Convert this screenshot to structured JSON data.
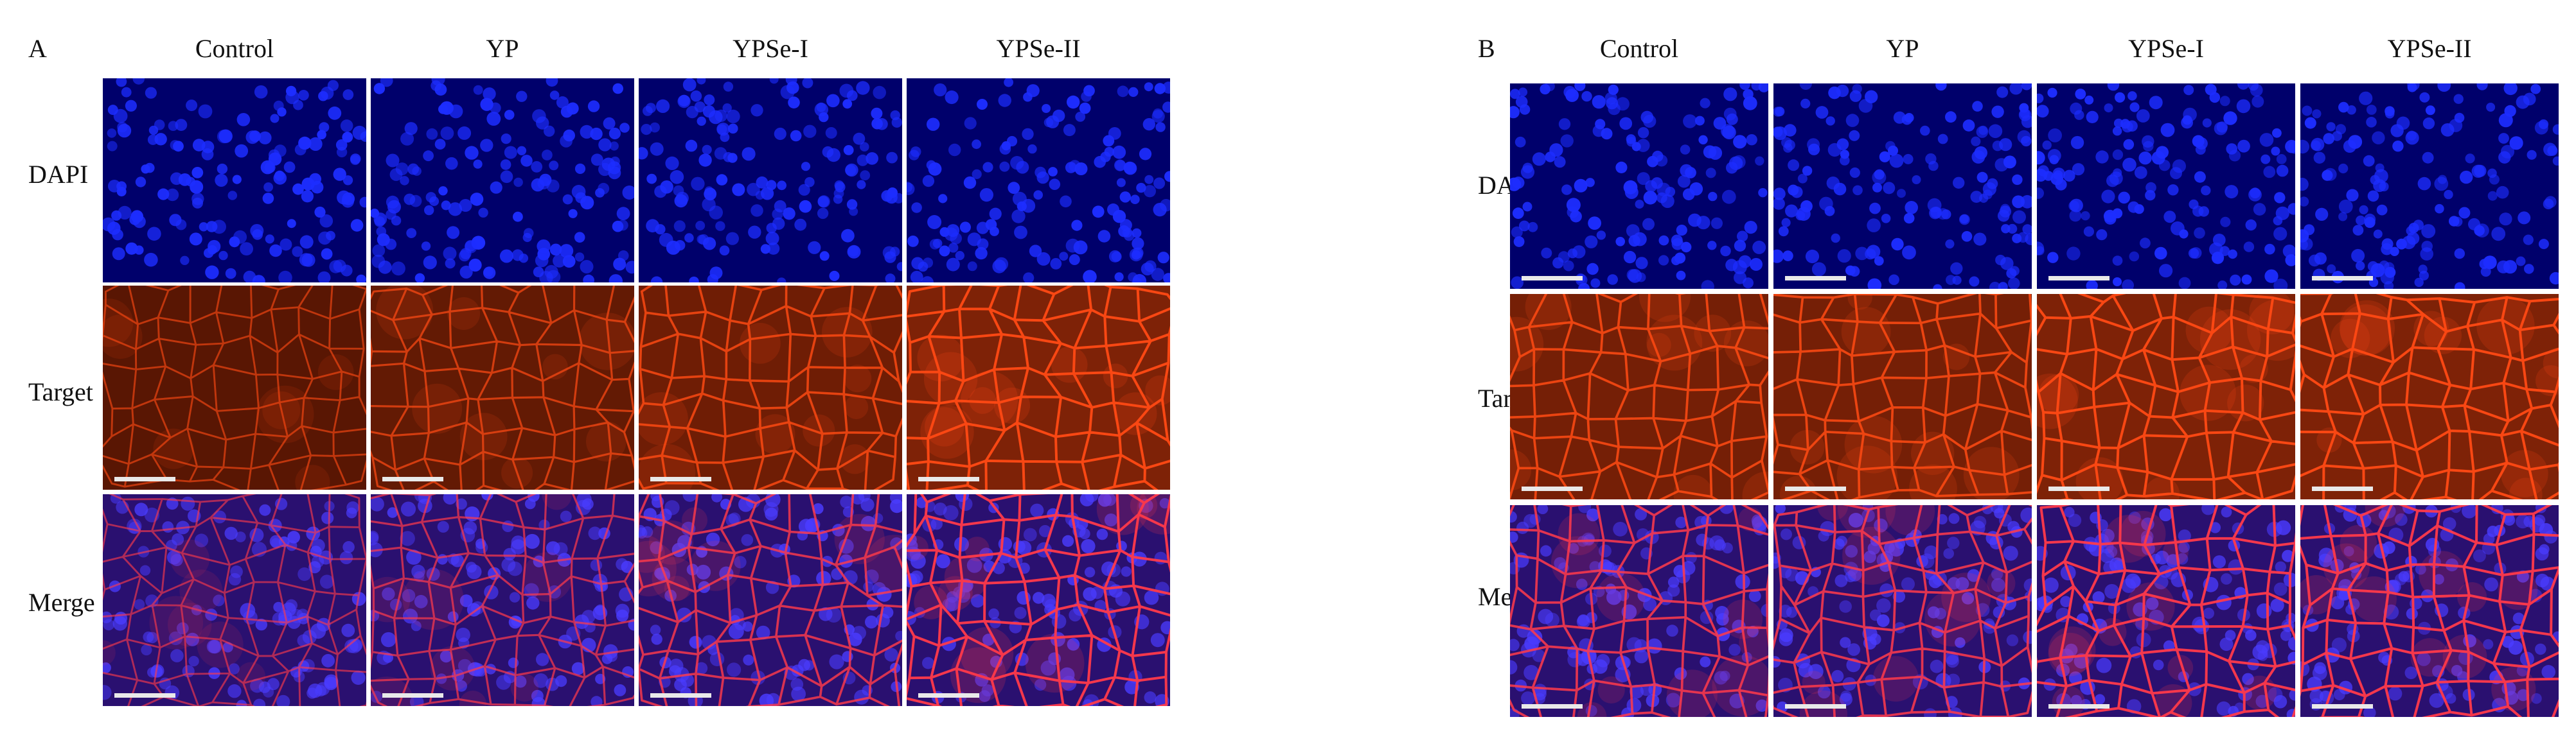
{
  "panels": [
    {
      "id": "A",
      "letter": "A",
      "columns": [
        "Control",
        "YP",
        "YPSe-I",
        "YPSe-II"
      ],
      "rows": [
        "DAPI",
        "Target",
        "Merge"
      ],
      "target_intensity": [
        0.45,
        0.6,
        0.78,
        1.0
      ]
    },
    {
      "id": "B",
      "letter": "B",
      "columns": [
        "Control",
        "YP",
        "YPSe-I",
        "YPSe-II"
      ],
      "rows": [
        "DAPI",
        "Target",
        "Merge"
      ],
      "target_intensity": [
        0.85,
        0.85,
        1.0,
        1.0
      ]
    }
  ],
  "colors": {
    "dapi_background": "#00006b",
    "dapi_nucleus": "#1d2dff",
    "target_background": "#3a0d00",
    "target_membrane": "#ff4a14",
    "merge_background": "#2a1070",
    "merge_membrane": "#ff3a4a",
    "merge_nucleus": "#4a3cff",
    "scale_bar": "#e9e9e9"
  }
}
